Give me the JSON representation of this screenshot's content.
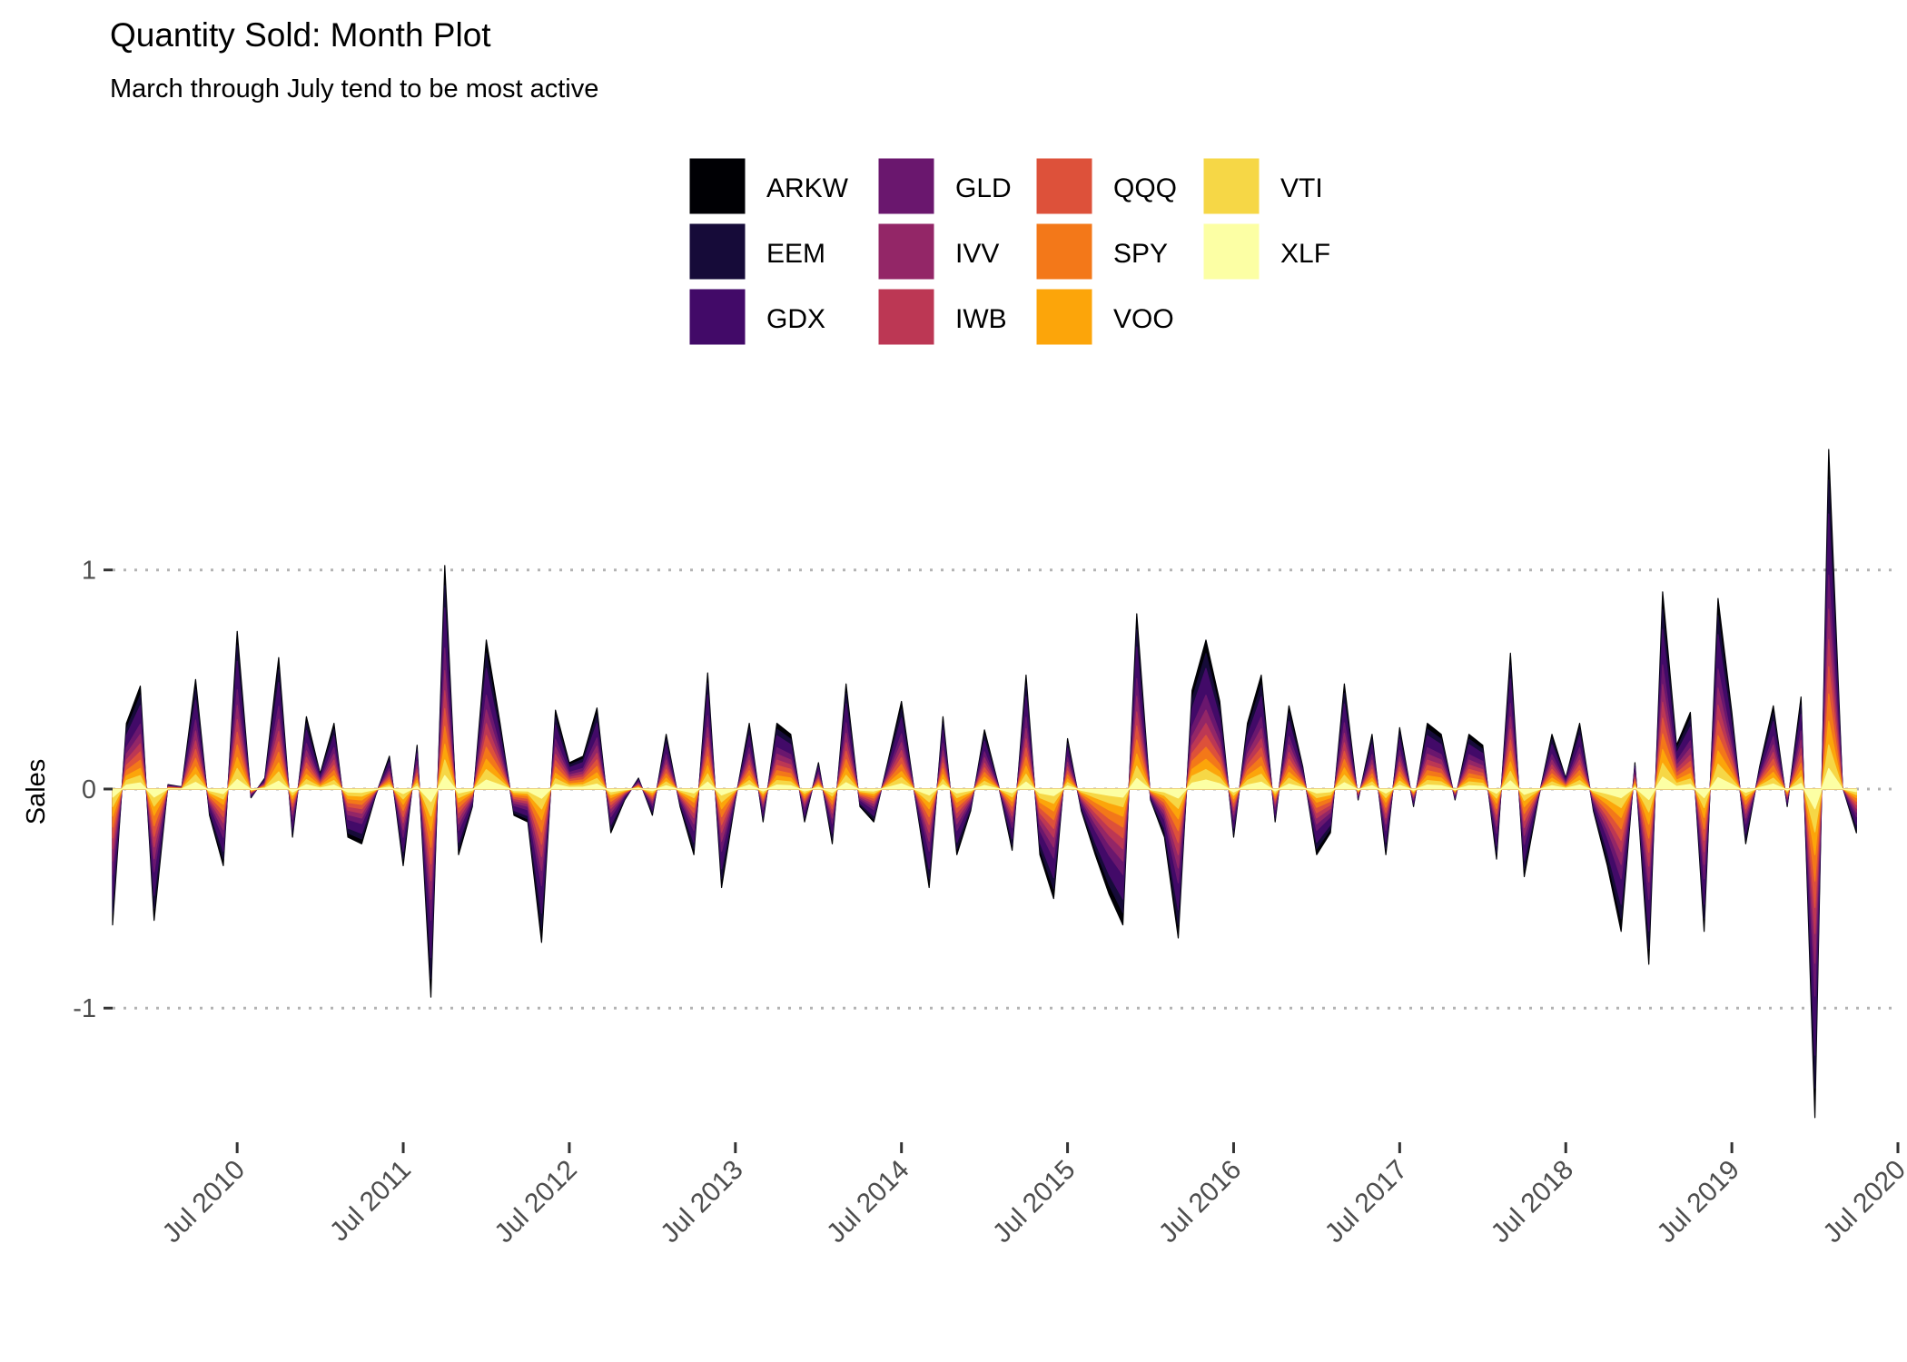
{
  "chart_data": {
    "type": "area",
    "title": "Quantity Sold: Month Plot",
    "subtitle": "March through July tend to be most active",
    "xlabel": "",
    "ylabel": "Sales",
    "y_ticks": [
      "1",
      "0",
      "-1"
    ],
    "y_tick_values": [
      1,
      0,
      -1
    ],
    "ylim": [
      -1.6,
      1.55
    ],
    "x_ticks": [
      "Jul 2010",
      "Jul 2011",
      "Jul 2012",
      "Jul 2013",
      "Jul 2014",
      "Jul 2015",
      "Jul 2016",
      "Jul 2017",
      "Jul 2018",
      "Jul 2019",
      "Jul 2020"
    ],
    "x_tick_values": [
      "2010-07",
      "2011-07",
      "2012-07",
      "2013-07",
      "2014-07",
      "2015-07",
      "2016-07",
      "2017-07",
      "2018-07",
      "2019-07",
      "2020-07"
    ],
    "xlim": [
      "2009-10",
      "2020-07"
    ],
    "grid": "horizontal dotted",
    "legend_position": "top",
    "series": [
      {
        "name": "ARKW",
        "color": "#000004"
      },
      {
        "name": "EEM",
        "color": "#160B39"
      },
      {
        "name": "GDX",
        "color": "#420A68"
      },
      {
        "name": "GLD",
        "color": "#6A176E"
      },
      {
        "name": "IVV",
        "color": "#932667"
      },
      {
        "name": "IWB",
        "color": "#BC3754"
      },
      {
        "name": "QQQ",
        "color": "#DD513A"
      },
      {
        "name": "SPY",
        "color": "#F37819"
      },
      {
        "name": "VOO",
        "color": "#FCA50A"
      },
      {
        "name": "VTI",
        "color": "#F6D746"
      },
      {
        "name": "XLF",
        "color": "#FCFFA4"
      }
    ],
    "months": [
      "2009-10",
      "2009-11",
      "2009-12",
      "2010-01",
      "2010-02",
      "2010-03",
      "2010-04",
      "2010-05",
      "2010-06",
      "2010-07",
      "2010-08",
      "2010-09",
      "2010-10",
      "2010-11",
      "2010-12",
      "2011-01",
      "2011-02",
      "2011-03",
      "2011-04",
      "2011-05",
      "2011-06",
      "2011-07",
      "2011-08",
      "2011-09",
      "2011-10",
      "2011-11",
      "2011-12",
      "2012-01",
      "2012-02",
      "2012-03",
      "2012-04",
      "2012-05",
      "2012-06",
      "2012-07",
      "2012-08",
      "2012-09",
      "2012-10",
      "2012-11",
      "2012-12",
      "2013-01",
      "2013-02",
      "2013-03",
      "2013-04",
      "2013-05",
      "2013-06",
      "2013-07",
      "2013-08",
      "2013-09",
      "2013-10",
      "2013-11",
      "2013-12",
      "2014-01",
      "2014-02",
      "2014-03",
      "2014-04",
      "2014-05",
      "2014-06",
      "2014-07",
      "2014-08",
      "2014-09",
      "2014-10",
      "2014-11",
      "2014-12",
      "2015-01",
      "2015-02",
      "2015-03",
      "2015-04",
      "2015-05",
      "2015-06",
      "2015-07",
      "2015-08",
      "2015-09",
      "2015-10",
      "2015-11",
      "2015-12",
      "2016-01",
      "2016-02",
      "2016-03",
      "2016-04",
      "2016-05",
      "2016-06",
      "2016-07",
      "2016-08",
      "2016-09",
      "2016-10",
      "2016-11",
      "2016-12",
      "2017-01",
      "2017-02",
      "2017-03",
      "2017-04",
      "2017-05",
      "2017-06",
      "2017-07",
      "2017-08",
      "2017-09",
      "2017-10",
      "2017-11",
      "2017-12",
      "2018-01",
      "2018-02",
      "2018-03",
      "2018-04",
      "2018-05",
      "2018-06",
      "2018-07",
      "2018-08",
      "2018-09",
      "2018-10",
      "2018-11",
      "2018-12",
      "2019-01",
      "2019-02",
      "2019-03",
      "2019-04",
      "2019-05",
      "2019-06",
      "2019-07",
      "2019-08",
      "2019-09",
      "2019-10",
      "2019-11",
      "2019-12",
      "2020-01",
      "2020-02",
      "2020-03",
      "2020-04"
    ],
    "totals": [
      -0.62,
      0.3,
      0.47,
      -0.6,
      0.02,
      0.01,
      0.5,
      -0.12,
      -0.35,
      0.72,
      -0.04,
      0.05,
      0.6,
      -0.22,
      0.33,
      0.07,
      0.3,
      -0.22,
      -0.25,
      -0.03,
      0.15,
      -0.35,
      0.2,
      -0.95,
      1.02,
      -0.3,
      -0.08,
      0.68,
      0.3,
      -0.12,
      -0.15,
      -0.7,
      0.36,
      0.12,
      0.15,
      0.37,
      -0.2,
      -0.05,
      0.05,
      -0.12,
      0.25,
      -0.08,
      -0.3,
      0.53,
      -0.45,
      -0.05,
      0.3,
      -0.15,
      0.3,
      0.25,
      -0.15,
      0.12,
      -0.25,
      0.48,
      -0.08,
      -0.15,
      0.12,
      0.4,
      -0.04,
      -0.45,
      0.33,
      -0.3,
      -0.1,
      0.27,
      0.02,
      -0.28,
      0.52,
      -0.3,
      -0.5,
      0.23,
      -0.1,
      -0.3,
      -0.48,
      -0.62,
      0.8,
      -0.05,
      -0.22,
      -0.68,
      0.45,
      0.68,
      0.4,
      -0.22,
      0.3,
      0.52,
      -0.15,
      0.38,
      0.1,
      -0.3,
      -0.2,
      0.48,
      -0.05,
      0.25,
      -0.3,
      0.28,
      -0.08,
      0.3,
      0.25,
      -0.05,
      0.25,
      0.2,
      -0.32,
      0.62,
      -0.4,
      -0.05,
      0.25,
      0.05,
      0.3,
      -0.1,
      -0.35,
      -0.65,
      0.12,
      -0.8,
      0.9,
      0.2,
      0.35,
      -0.65,
      0.87,
      0.35,
      -0.25,
      0.1,
      0.38,
      -0.08,
      0.42,
      -1.5,
      1.55,
      0.01,
      -0.2
    ],
    "stack_weights": [
      0.09,
      0.1,
      0.18,
      0.1,
      0.09,
      0.08,
      0.08,
      0.08,
      0.07,
      0.07,
      0.06
    ]
  }
}
